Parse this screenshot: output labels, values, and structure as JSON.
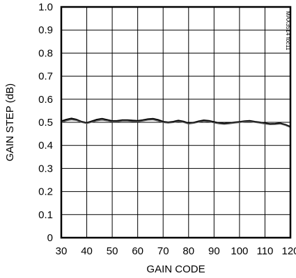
{
  "chart_data": {
    "type": "line",
    "title": "",
    "xlabel": "GAIN CODE",
    "ylabel": "GAIN STEP (dB)",
    "xlim": [
      30,
      120
    ],
    "ylim": [
      0,
      1.0
    ],
    "grid": true,
    "x_ticks": [
      30,
      40,
      50,
      60,
      70,
      80,
      90,
      100,
      110,
      120
    ],
    "y_ticks": [
      0,
      0.1,
      0.2,
      0.3,
      0.4,
      0.5,
      0.6,
      0.7,
      0.8,
      0.9,
      1.0
    ],
    "x_tick_labels": [
      "30",
      "40",
      "50",
      "60",
      "70",
      "80",
      "90",
      "100",
      "110",
      "120"
    ],
    "y_tick_labels": [
      "0",
      "0.1",
      "0.2",
      "0.3",
      "0.4",
      "0.5",
      "0.6",
      "0.7",
      "0.8",
      "0.9",
      "1.0"
    ],
    "figure_id": "MAX3514 toc11",
    "series": [
      {
        "color": "#000000",
        "x": [
          30,
          32,
          34,
          36,
          38,
          40,
          42,
          44,
          46,
          48,
          50,
          52,
          54,
          56,
          58,
          60,
          62,
          64,
          66,
          68,
          70,
          72,
          74,
          76,
          78,
          80,
          82,
          84,
          86,
          88,
          90,
          92,
          94,
          96,
          98,
          100,
          102,
          104,
          106,
          108,
          110,
          112,
          114,
          116,
          118,
          120
        ],
        "y": [
          0.505,
          0.512,
          0.517,
          0.512,
          0.503,
          0.498,
          0.505,
          0.512,
          0.516,
          0.511,
          0.506,
          0.507,
          0.51,
          0.51,
          0.508,
          0.507,
          0.51,
          0.514,
          0.516,
          0.511,
          0.503,
          0.5,
          0.503,
          0.508,
          0.504,
          0.496,
          0.499,
          0.505,
          0.509,
          0.507,
          0.502,
          0.497,
          0.495,
          0.497,
          0.5,
          0.502,
          0.505,
          0.507,
          0.503,
          0.5,
          0.496,
          0.493,
          0.494,
          0.496,
          0.49,
          0.481
        ]
      },
      {
        "color": "#555555",
        "x": [
          30,
          32,
          34,
          36,
          38,
          40,
          42,
          44,
          46,
          48,
          50,
          52,
          54,
          56,
          58,
          60,
          62,
          64,
          66,
          68,
          70,
          72,
          74,
          76,
          78,
          80,
          82,
          84,
          86,
          88,
          90,
          92,
          94,
          96,
          98,
          100,
          102,
          104,
          106,
          108,
          110,
          112,
          114,
          116,
          118,
          120
        ],
        "y": [
          0.5,
          0.507,
          0.511,
          0.508,
          0.5,
          0.495,
          0.501,
          0.507,
          0.51,
          0.507,
          0.502,
          0.503,
          0.506,
          0.506,
          0.504,
          0.503,
          0.506,
          0.51,
          0.511,
          0.506,
          0.499,
          0.497,
          0.499,
          0.504,
          0.5,
          0.493,
          0.496,
          0.501,
          0.505,
          0.503,
          0.498,
          0.494,
          0.492,
          0.494,
          0.497,
          0.499,
          0.502,
          0.503,
          0.5,
          0.497,
          0.493,
          0.49,
          0.491,
          0.493,
          0.487,
          0.478
        ]
      }
    ]
  }
}
